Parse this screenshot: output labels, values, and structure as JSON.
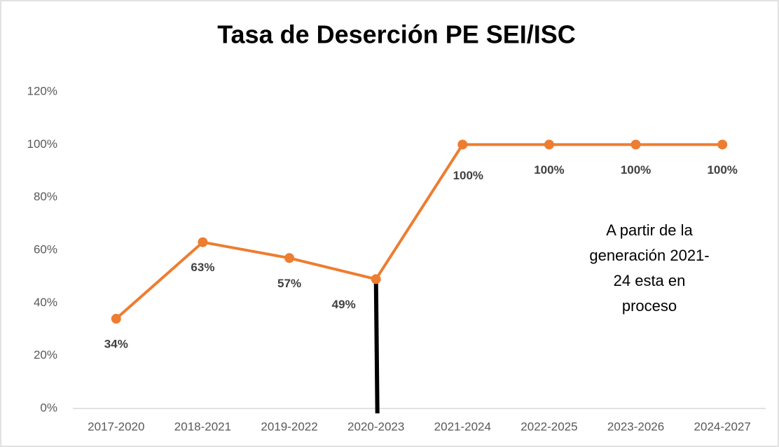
{
  "chart_data": {
    "type": "line",
    "title": "Tasa de Deserción PE SEI/ISC",
    "categories": [
      "2017-2020",
      "2018-2021",
      "2019-2022",
      "2020-2023",
      "2021-2024",
      "2022-2025",
      "2023-2026",
      "2024-2027"
    ],
    "values": [
      34,
      63,
      57,
      49,
      100,
      100,
      100,
      100
    ],
    "value_labels": [
      "34%",
      "63%",
      "57%",
      "49%",
      "100%",
      "100%",
      "100%",
      "100%"
    ],
    "color": "#ed7d31",
    "ylim": [
      0,
      120
    ],
    "yticks": [
      {
        "value": 0,
        "label": "0%"
      },
      {
        "value": 20,
        "label": "20%"
      },
      {
        "value": 40,
        "label": "40%"
      },
      {
        "value": 60,
        "label": "60%"
      },
      {
        "value": 80,
        "label": "80%"
      },
      {
        "value": 100,
        "label": "100%"
      },
      {
        "value": 120,
        "label": "120%"
      }
    ],
    "grid": false,
    "annotation": [
      "A partir de la",
      "generación 2021-",
      "24 esta en",
      "proceso"
    ]
  }
}
